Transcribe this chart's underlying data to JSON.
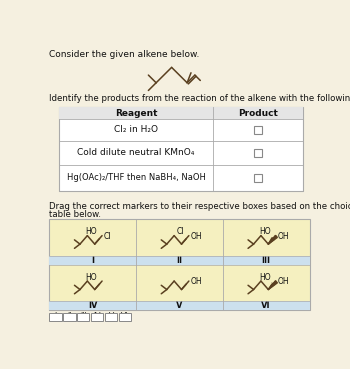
{
  "bg_color": "#f5f0e0",
  "title_text": "Consider the given alkene below.",
  "identify_text": "Identify the products from the reaction of the alkene with the following reagents:",
  "drag_text": "Drag the correct markers to their respective boxes based on the choices from the\ntable below.",
  "reagents": [
    "Cl₂ in H₂O",
    "Cold dilute neutral KMnO₄",
    "Hg(OAc)₂/THF then NaBH₄, NaOH"
  ],
  "product_header": "Product",
  "reagent_header": "Reagent",
  "roman_labels": [
    "I",
    "II",
    "III",
    "IV",
    "V",
    "VI"
  ],
  "table_border": "#aaaaaa",
  "cell_bg_yellow": "#f5f0c0",
  "cell_bg_blue": "#cce0ee",
  "lc": "#5a4020",
  "lw": 1.1
}
